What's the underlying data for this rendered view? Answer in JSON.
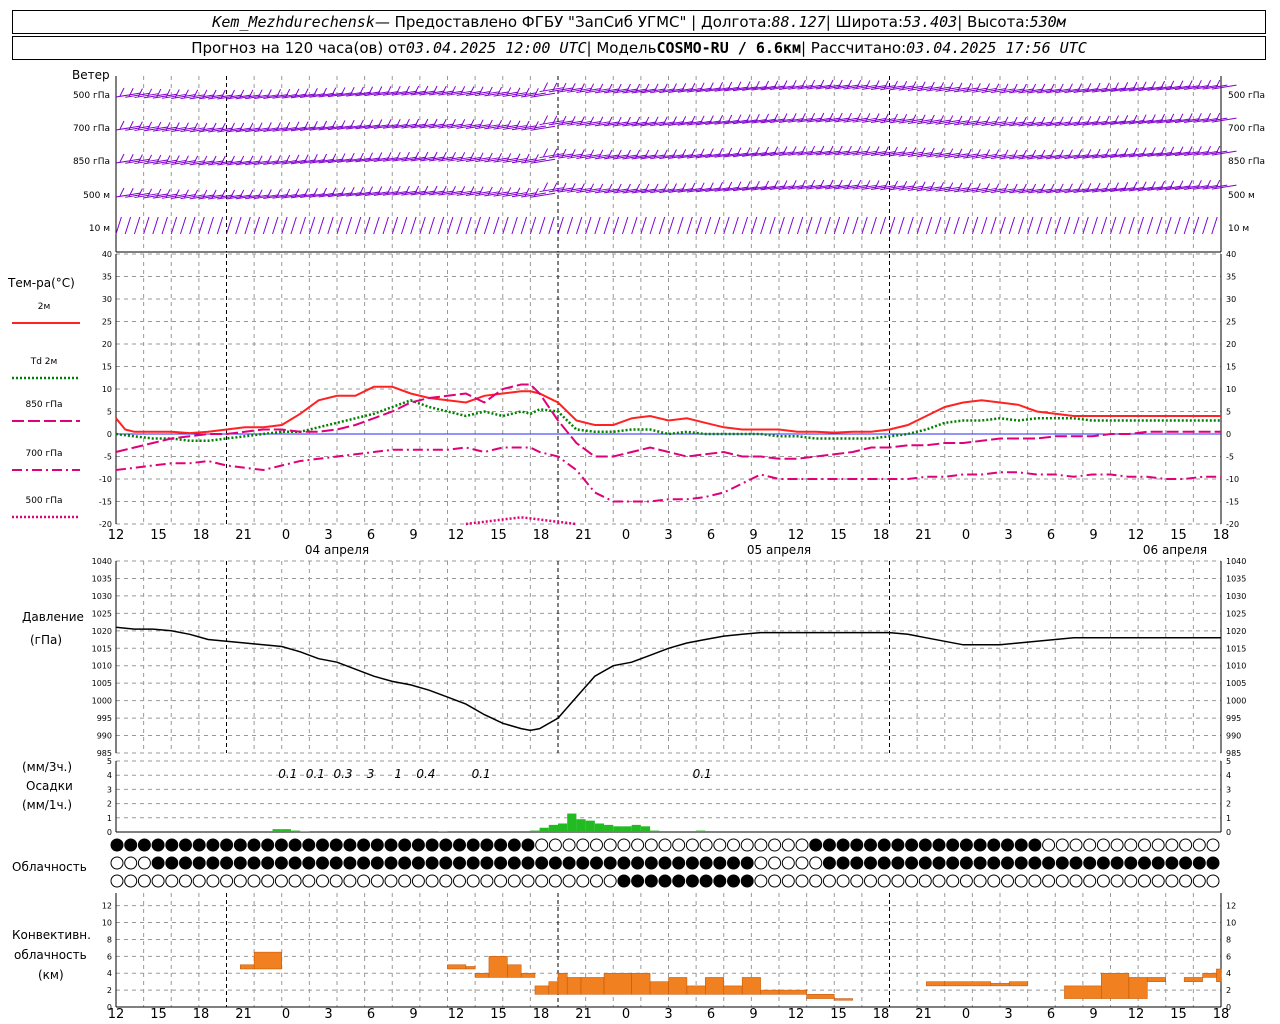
{
  "header": {
    "station": "Kem_Mezhdurechensk",
    "provided_by": "— Предоставлено ФГБУ \"ЗапСиб УГМС\" | Долгота:",
    "lon": "88.127",
    "lat_label": "| Широта:",
    "lat": "53.403",
    "alt_label": "| Высота:",
    "alt": "530м",
    "forecast_label": "Прогноз на 120 часа(ов) от",
    "init_time": "03.04.2025 12:00 UTC",
    "model_label": "| Модель",
    "model": "COSMO-RU / 6.6км",
    "computed_label": "| Рассчитано:",
    "computed_time": "03.04.2025 17:56 UTC"
  },
  "labels": {
    "wind": "Ветер",
    "levels": [
      "500 гПа",
      "700 гПа",
      "850 гПа",
      "500 м",
      "10 м"
    ],
    "temp_title": "Тем-ра(°C)",
    "temp_legend": [
      {
        "name": "2м",
        "color": "#ff2222",
        "style": "solid"
      },
      {
        "name": "Td 2м",
        "color": "#008000",
        "style": "dotted"
      },
      {
        "name": "850 гПа",
        "color": "#e0007a",
        "style": "solid"
      },
      {
        "name": "700 гПа",
        "color": "#e0007a",
        "style": "dashdot"
      },
      {
        "name": "500 гПа",
        "color": "#e0007a",
        "style": "dotted"
      }
    ],
    "pressure_title": "Давление",
    "pressure_unit": "(гПа)",
    "precip_label_1": "(мм/3ч.)",
    "precip_label_2": "Осадки",
    "precip_label_3": "(мм/1ч.)",
    "cloud_label": "Облачность",
    "conv_label_1": "Конвективн.",
    "conv_label_2": "облачность",
    "conv_label_3": "(км)",
    "dates": [
      "04 апреля",
      "05 апреля",
      "06 апреля"
    ],
    "hour_ticks": [
      "12",
      "15",
      "18",
      "21",
      "0",
      "3",
      "6",
      "9",
      "12",
      "15",
      "18",
      "21",
      "0",
      "3",
      "6",
      "9",
      "12",
      "15",
      "18",
      "21",
      "0",
      "3",
      "6",
      "9",
      "12",
      "15",
      "18"
    ],
    "precip_totals": [
      {
        "hour": 18,
        "text": "0.1"
      },
      {
        "hour": 21,
        "text": "0.1"
      },
      {
        "hour": 24,
        "text": "0.3"
      },
      {
        "hour": 27,
        "text": "3"
      },
      {
        "hour": 30,
        "text": "1"
      },
      {
        "hour": 33,
        "text": "0.4"
      },
      {
        "hour": 39,
        "text": "0.1"
      },
      {
        "hour": 63,
        "text": "0.1"
      }
    ]
  },
  "colors": {
    "t2m": "#ff2222",
    "td": "#008000",
    "upper": "#e0007a",
    "wind": "#8000d0",
    "precip": "#22bb22",
    "conv": "#f08020"
  },
  "chart_data": [
    {
      "type": "line",
      "title": "Тем-ра(°C)",
      "x_unit": "hours since 03.04.2025 12:00 UTC",
      "ylim": [
        -20,
        40
      ],
      "series": [
        {
          "name": "2м",
          "x": [
            0,
            1,
            2,
            4,
            6,
            8,
            10,
            12,
            14,
            16,
            18,
            20,
            22,
            24,
            26,
            28,
            30,
            32,
            34,
            36,
            38,
            40,
            42,
            44,
            45,
            46,
            48,
            50,
            52,
            54,
            56,
            58,
            60,
            62,
            64,
            66,
            68,
            70,
            72,
            74,
            76,
            78,
            80,
            82,
            84,
            86,
            88,
            90,
            92,
            94,
            96,
            98,
            100,
            102,
            104,
            106,
            108,
            110,
            112,
            114,
            116,
            118,
            120
          ],
          "y": [
            3.5,
            1,
            0.5,
            0.5,
            0.5,
            0.2,
            0.5,
            1,
            1.5,
            1.5,
            2,
            4.5,
            7.5,
            8.5,
            8.5,
            10.5,
            10.5,
            9,
            8,
            7.5,
            7,
            8.5,
            9,
            9.5,
            9.5,
            9,
            7,
            3,
            2,
            2,
            3.5,
            4,
            3,
            3.5,
            2.5,
            1.5,
            1,
            1,
            1,
            0.5,
            0.5,
            0.3,
            0.5,
            0.5,
            1,
            2,
            4,
            6,
            7,
            7.5,
            7,
            6.5,
            5,
            4.5,
            4,
            4,
            4,
            4,
            4,
            4,
            4,
            4,
            4
          ]
        },
        {
          "name": "Td 2м",
          "x": [
            0,
            2,
            4,
            6,
            8,
            10,
            12,
            14,
            16,
            18,
            20,
            22,
            24,
            26,
            28,
            30,
            32,
            34,
            36,
            38,
            40,
            42,
            44,
            45,
            46,
            48,
            50,
            52,
            54,
            56,
            58,
            60,
            62,
            64,
            66,
            68,
            70,
            72,
            74,
            76,
            78,
            80,
            82,
            84,
            86,
            88,
            90,
            92,
            94,
            96,
            98,
            100,
            102,
            104,
            106,
            108,
            110,
            112,
            114,
            116,
            118,
            120
          ],
          "y": [
            0,
            -0.5,
            -1,
            -1,
            -1.5,
            -1.5,
            -1,
            -0.5,
            0,
            0.5,
            0.5,
            1.5,
            2.5,
            3.5,
            4.5,
            6,
            7.5,
            6,
            5,
            4,
            5,
            4,
            5,
            4.5,
            5.5,
            5,
            1,
            0.5,
            0.5,
            1,
            1,
            0,
            0.5,
            0,
            0,
            0,
            0,
            -0.5,
            -0.5,
            -1,
            -1,
            -1,
            -1,
            -0.5,
            0,
            1,
            2.5,
            3,
            3,
            3.5,
            3,
            3.5,
            3.5,
            3.5,
            3,
            3,
            3,
            3,
            3,
            3,
            3,
            3
          ]
        },
        {
          "name": "850 гПа",
          "x": [
            0,
            2,
            4,
            6,
            8,
            10,
            12,
            14,
            16,
            18,
            20,
            22,
            24,
            26,
            28,
            30,
            32,
            34,
            36,
            38,
            40,
            42,
            44,
            45,
            46,
            48,
            50,
            52,
            54,
            56,
            58,
            60,
            62,
            64,
            66,
            68,
            70,
            72,
            74,
            76,
            78,
            80,
            82,
            84,
            86,
            88,
            90,
            92,
            94,
            96,
            98,
            100,
            102,
            104,
            106,
            108,
            110,
            112,
            114,
            116,
            118,
            120
          ],
          "y": [
            -4,
            -3,
            -2,
            -1,
            -0.5,
            0,
            0,
            0.5,
            1,
            1,
            0.5,
            0.5,
            1,
            2,
            3.5,
            5,
            7,
            8,
            8.5,
            9,
            7,
            10,
            11,
            11,
            9,
            3,
            -2,
            -5,
            -5,
            -4,
            -3,
            -4,
            -5,
            -4.5,
            -4,
            -5,
            -5,
            -5.5,
            -5.5,
            -5,
            -4.5,
            -4,
            -3,
            -3,
            -2.5,
            -2.5,
            -2,
            -2,
            -1.5,
            -1,
            -1,
            -1,
            -0.5,
            -0.5,
            -0.5,
            0,
            0,
            0.5,
            0.5,
            0.5,
            0.5,
            0.5
          ]
        },
        {
          "name": "700 гПа",
          "x": [
            0,
            2,
            4,
            6,
            8,
            10,
            12,
            14,
            16,
            18,
            20,
            22,
            24,
            26,
            28,
            30,
            32,
            34,
            36,
            38,
            40,
            42,
            44,
            45,
            46,
            48,
            50,
            52,
            54,
            56,
            58,
            60,
            62,
            64,
            66,
            68,
            70,
            72,
            74,
            76,
            78,
            80,
            82,
            84,
            86,
            88,
            90,
            92,
            94,
            96,
            98,
            100,
            102,
            104,
            106,
            108,
            110,
            112,
            114,
            116,
            118,
            120
          ],
          "y": [
            -8,
            -7.5,
            -7,
            -6.5,
            -6.5,
            -6,
            -7,
            -7.5,
            -8,
            -7,
            -6,
            -5.5,
            -5,
            -4.5,
            -4,
            -3.5,
            -3.5,
            -3.5,
            -3.5,
            -3,
            -4,
            -3,
            -3,
            -3,
            -4,
            -5,
            -8,
            -13,
            -15,
            -15,
            -15,
            -14.5,
            -14.5,
            -14,
            -13,
            -11,
            -9,
            -10,
            -10,
            -10,
            -10,
            -10,
            -10,
            -10,
            -10,
            -9.5,
            -9.5,
            -9,
            -9,
            -8.5,
            -8.5,
            -9,
            -9,
            -9.5,
            -9,
            -9,
            -9.5,
            -9.5,
            -10,
            -10,
            -9.5,
            -9.5
          ]
        },
        {
          "name": "500 гПа",
          "x": [
            38,
            40,
            42,
            44,
            46,
            48,
            50
          ],
          "y": [
            -20,
            -19.5,
            -19,
            -18.5,
            -19,
            -19.5,
            -20
          ]
        }
      ]
    },
    {
      "type": "line",
      "title": "Давление",
      "ylabel": "(гПа)",
      "x_unit": "hours since 03.04.2025 12:00 UTC",
      "ylim": [
        985,
        1040
      ],
      "series": [
        {
          "name": "Давление",
          "x": [
            0,
            2,
            4,
            6,
            8,
            10,
            12,
            14,
            16,
            18,
            20,
            22,
            24,
            26,
            28,
            30,
            32,
            34,
            36,
            38,
            40,
            42,
            44,
            45,
            46,
            48,
            50,
            52,
            54,
            56,
            58,
            60,
            62,
            64,
            66,
            68,
            70,
            72,
            74,
            76,
            78,
            80,
            82,
            84,
            86,
            88,
            90,
            92,
            94,
            96,
            98,
            100,
            102,
            104,
            106,
            108,
            110,
            112,
            114,
            116,
            118,
            120
          ],
          "y": [
            1021,
            1020.5,
            1020.5,
            1020,
            1019,
            1017.5,
            1017,
            1016.5,
            1016,
            1015.5,
            1014,
            1012,
            1011,
            1009,
            1007,
            1005.5,
            1004.5,
            1003,
            1001,
            999,
            996,
            993.5,
            992,
            991.5,
            992,
            995,
            1001,
            1007,
            1010,
            1011,
            1013,
            1015,
            1016.5,
            1017.5,
            1018.5,
            1019,
            1019.5,
            1019.5,
            1019.5,
            1019.5,
            1019.5,
            1019.5,
            1019.5,
            1019.5,
            1019,
            1018,
            1017,
            1016,
            1016,
            1016,
            1016.5,
            1017,
            1017.5,
            1018,
            1018,
            1018,
            1018,
            1018,
            1018,
            1018,
            1018,
            1018
          ]
        }
      ]
    },
    {
      "type": "bar",
      "title": "Осадки",
      "ylabel": "(мм/1ч.)",
      "x_unit": "hours since 03.04.2025 12:00 UTC",
      "ylim": [
        0,
        5
      ],
      "x": [
        45,
        46,
        47,
        48,
        49,
        50,
        51,
        52,
        53,
        54,
        55,
        56,
        57,
        58
      ],
      "values": [
        0.1,
        0.3,
        0.5,
        0.6,
        1.3,
        0.9,
        0.8,
        0.6,
        0.5,
        0.4,
        0.4,
        0.5,
        0.4,
        0.1
      ],
      "series_small": {
        "x": [
          17,
          18,
          19,
          20,
          35,
          63
        ],
        "values": [
          0.2,
          0.2,
          0.1,
          0.05,
          0.05,
          0.1
        ]
      }
    },
    {
      "type": "bar",
      "title": "Конвективн. облачность",
      "ylabel": "(км)",
      "x_unit": "hours since 03.04.2025 12:00 UTC",
      "ylim": [
        0,
        13
      ],
      "bars": [
        {
          "x0": 13.5,
          "x1": 15,
          "bottom": 4.5,
          "top": 5
        },
        {
          "x0": 15,
          "x1": 18,
          "bottom": 4.5,
          "top": 6.5
        },
        {
          "x0": 36,
          "x1": 38,
          "bottom": 4.5,
          "top": 5
        },
        {
          "x0": 38,
          "x1": 39,
          "bottom": 4.5,
          "top": 4.8
        },
        {
          "x0": 39,
          "x1": 40.5,
          "bottom": 3.5,
          "top": 4
        },
        {
          "x0": 40.5,
          "x1": 42.5,
          "bottom": 3.5,
          "top": 6
        },
        {
          "x0": 42.5,
          "x1": 44,
          "bottom": 3.5,
          "top": 5
        },
        {
          "x0": 44,
          "x1": 45.5,
          "bottom": 3.5,
          "top": 4
        },
        {
          "x0": 45.5,
          "x1": 47,
          "bottom": 1.5,
          "top": 2.5
        },
        {
          "x0": 47,
          "x1": 48,
          "bottom": 1.5,
          "top": 3
        },
        {
          "x0": 48,
          "x1": 49,
          "bottom": 1.5,
          "top": 4
        },
        {
          "x0": 49,
          "x1": 50.5,
          "bottom": 1.5,
          "top": 3.5
        },
        {
          "x0": 50.5,
          "x1": 53,
          "bottom": 1.5,
          "top": 3.5
        },
        {
          "x0": 53,
          "x1": 56,
          "bottom": 1.5,
          "top": 4
        },
        {
          "x0": 56,
          "x1": 58,
          "bottom": 1.5,
          "top": 4
        },
        {
          "x0": 58,
          "x1": 60,
          "bottom": 1.5,
          "top": 3
        },
        {
          "x0": 60,
          "x1": 62,
          "bottom": 1.5,
          "top": 3.5
        },
        {
          "x0": 62,
          "x1": 64,
          "bottom": 1.5,
          "top": 2.5
        },
        {
          "x0": 64,
          "x1": 66,
          "bottom": 1.5,
          "top": 3.5
        },
        {
          "x0": 66,
          "x1": 68,
          "bottom": 1.5,
          "top": 2.5
        },
        {
          "x0": 68,
          "x1": 70,
          "bottom": 1.5,
          "top": 3.5
        },
        {
          "x0": 70,
          "x1": 72,
          "bottom": 1.5,
          "top": 2
        },
        {
          "x0": 72,
          "x1": 75,
          "bottom": 1.5,
          "top": 2
        },
        {
          "x0": 75,
          "x1": 78,
          "bottom": 1,
          "top": 1.5
        },
        {
          "x0": 78,
          "x1": 80,
          "bottom": 0.8,
          "top": 1
        },
        {
          "x0": 88,
          "x1": 90,
          "bottom": 2.5,
          "top": 3
        },
        {
          "x0": 90,
          "x1": 95,
          "bottom": 2.5,
          "top": 3
        },
        {
          "x0": 95,
          "x1": 97,
          "bottom": 2.5,
          "top": 2.8
        },
        {
          "x0": 97,
          "x1": 99,
          "bottom": 2.5,
          "top": 3
        },
        {
          "x0": 103,
          "x1": 107,
          "bottom": 1,
          "top": 2.5
        },
        {
          "x0": 107,
          "x1": 110,
          "bottom": 1,
          "top": 4
        },
        {
          "x0": 110,
          "x1": 112,
          "bottom": 1,
          "top": 3.5
        },
        {
          "x0": 112,
          "x1": 114,
          "bottom": 3,
          "top": 3.5
        },
        {
          "x0": 116,
          "x1": 118,
          "bottom": 3,
          "top": 3.5
        },
        {
          "x0": 118,
          "x1": 120,
          "bottom": 3.5,
          "top": 4
        },
        {
          "x0": 119.5,
          "x1": 120,
          "bottom": 3,
          "top": 4.5
        }
      ]
    }
  ]
}
